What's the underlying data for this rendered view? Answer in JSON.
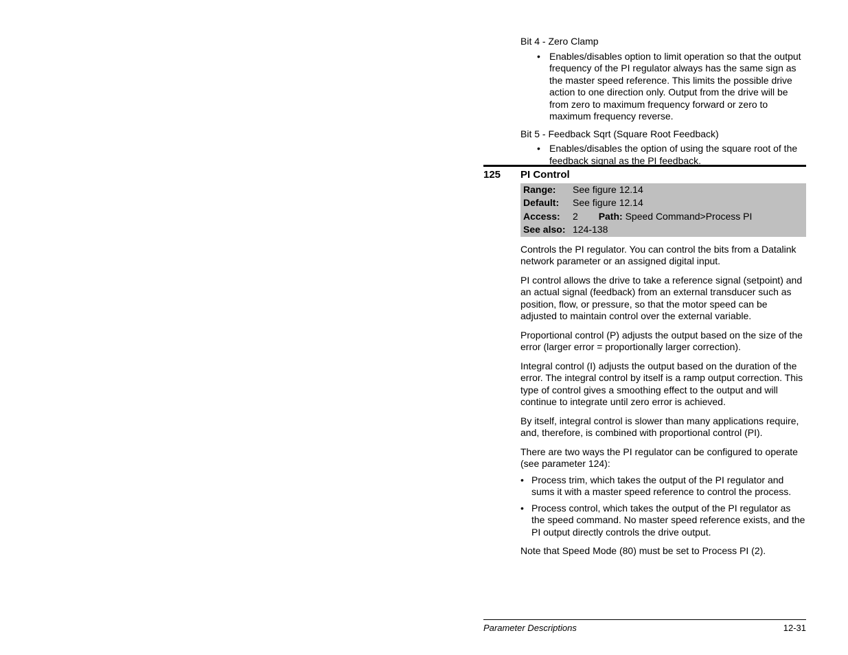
{
  "top": {
    "bit4_heading": "Bit 4 - Zero Clamp",
    "bit4_bullet": "Enables/disables option to limit operation so that the output frequency of the PI regulator always has the same sign as the master speed reference. This limits the possible drive action to one direction only. Output from the drive will be from zero to maximum frequency forward or zero to maximum frequency reverse.",
    "bit5_heading": "Bit 5 - Feedback Sqrt (Square Root Feedback)",
    "bit5_bullet": "Enables/disables the option of using the square root of the feedback signal as the PI feedback."
  },
  "param": {
    "number": "125",
    "name": "PI Control",
    "range_label": "Range:",
    "range_value": "See figure 12.14",
    "default_label": "Default:",
    "default_value": "See figure 12.14",
    "access_label": "Access:",
    "access_value": "2",
    "path_label": "Path:",
    "path_value": "Speed Command>Process PI",
    "seealso_label": "See also:",
    "seealso_value": "124-138"
  },
  "body": {
    "p1": "Controls the PI regulator. You can control the bits from a Datalink network parameter or an assigned digital input.",
    "p2": "PI control allows the drive to take a reference signal (setpoint) and an actual signal (feedback) from an external transducer such as position, flow, or pressure, so that the motor speed can be adjusted to maintain control over the external variable.",
    "p3": "Proportional control (P) adjusts the output based on the size of the error (larger error = proportionally larger correction).",
    "p4": "Integral control (I) adjusts the output based on the duration of the error. The integral control by itself is a ramp output correction. This type of control gives a smoothing effect to the output and will continue to integrate until zero error is achieved.",
    "p5": "By itself, integral control is slower than many applications require, and, therefore, is combined with proportional control (PI).",
    "p6": "There are two ways the PI regulator can be configured to operate (see parameter 124):",
    "b1": "Process trim, which takes the output of the PI regulator and sums it with a master speed reference to control the process.",
    "b2": "Process control, which takes the output of the PI regulator as the speed command. No master speed reference exists, and the PI output directly controls the drive output.",
    "p7": "Note that Speed Mode (80) must be set to Process PI (2)."
  },
  "footer": {
    "section": "Parameter Descriptions",
    "page": "12-31"
  },
  "colors": {
    "gray_box": "#bfbfbf",
    "text": "#000000",
    "background": "#ffffff"
  }
}
